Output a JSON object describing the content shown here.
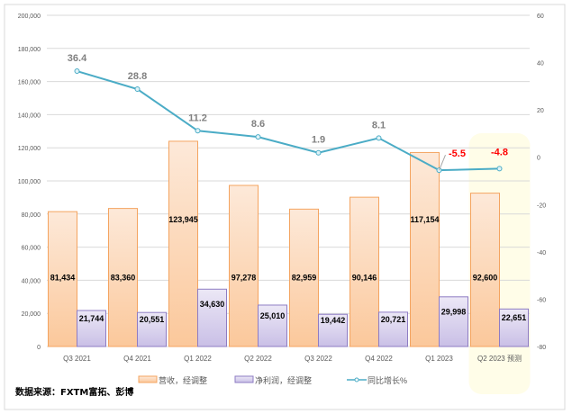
{
  "chart_data": {
    "type": "bar",
    "categories": [
      "Q3 2021",
      "Q4 2021",
      "Q1 2022",
      "Q2 2022",
      "Q3 2022",
      "Q4 2022",
      "Q1 2023",
      "Q2 2023 预测"
    ],
    "series": [
      {
        "name": "营收，经调整",
        "type": "bar",
        "axis": "left",
        "color": "#f4b183",
        "values": [
          81434,
          83360,
          123945,
          97278,
          82959,
          90146,
          117154,
          92600
        ],
        "labels": [
          "81,434",
          "83,360",
          "123,945",
          "97,278",
          "82,959",
          "90,146",
          "117,154",
          "92,600"
        ]
      },
      {
        "name": "净利润，经调整",
        "type": "bar",
        "axis": "left",
        "color": "#b4a7d6",
        "values": [
          21744,
          20551,
          34630,
          25010,
          19442,
          20721,
          29998,
          22651
        ],
        "labels": [
          "21,744",
          "20,551",
          "34,630",
          "25,010",
          "19,442",
          "20,721",
          "29,998",
          "22,651"
        ]
      },
      {
        "name": "同比增长%",
        "type": "line",
        "axis": "right",
        "color": "#4bacc6",
        "values": [
          36.4,
          28.8,
          11.2,
          8.6,
          1.9,
          8.1,
          -5.5,
          -4.8
        ],
        "labels": [
          "36.4",
          "28.8",
          "11.2",
          "8.6",
          "1.9",
          "8.1",
          "-5.5",
          "-4.8"
        ],
        "negative_label_color": "#ff0000",
        "positive_label_color": "#808080"
      }
    ],
    "left_axis": {
      "ylim": [
        0,
        200000
      ],
      "ticks": [
        "0",
        "20,000",
        "40,000",
        "60,000",
        "80,000",
        "100,000",
        "120,000",
        "140,000",
        "160,000",
        "180,000",
        "200,000"
      ]
    },
    "right_axis": {
      "ylim": [
        -80,
        60
      ],
      "ticks": [
        "-80",
        "-60",
        "-40",
        "-20",
        "0",
        "20",
        "40",
        "60"
      ]
    },
    "grid": true,
    "legend_position": "bottom",
    "highlighted_category": "Q2 2023 预测",
    "highlight_color": "#fffde8"
  },
  "source_note": "数据来源：FXTM富拓、彭博"
}
